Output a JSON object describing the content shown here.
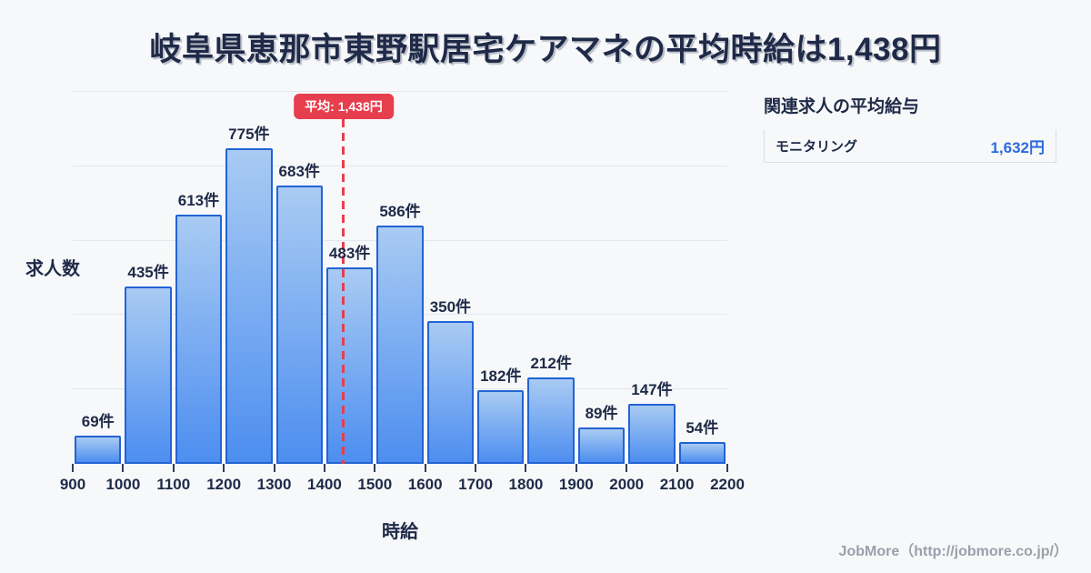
{
  "title": "岐阜県恵那市東野駅居宅ケアマネの平均時給は1,438円",
  "chart_data": {
    "type": "bar",
    "subtype": "histogram",
    "xlabel": "時給",
    "ylabel": "求人数",
    "categories": [
      "900-1000",
      "1000-1100",
      "1100-1200",
      "1200-1300",
      "1300-1400",
      "1400-1500",
      "1500-1600",
      "1600-1700",
      "1700-1800",
      "1800-1900",
      "1900-2000",
      "2000-2100",
      "2100-2200"
    ],
    "values": [
      69,
      435,
      613,
      775,
      683,
      483,
      586,
      350,
      182,
      212,
      89,
      147,
      54
    ],
    "bar_label_unit": "件",
    "x_tick_labels": [
      "900",
      "1000",
      "1100",
      "1200",
      "1300",
      "1400",
      "1500",
      "1600",
      "1700",
      "1800",
      "1900",
      "2000",
      "2100",
      "2200"
    ],
    "x_range": [
      900,
      2200
    ],
    "average_value": 1438,
    "average_badge_label": "平均: 1,438円",
    "grid": true,
    "gridline_count": 5,
    "legend_position": "none"
  },
  "side_panel": {
    "heading": "関連求人の平均給与",
    "rows": [
      {
        "label": "モニタリング",
        "value": "1,632円"
      }
    ]
  },
  "footer": {
    "credit": "JobMore（http://jobmore.co.jp/）"
  },
  "colors": {
    "bg": "#f7f8fa",
    "navy": "#1e2a47",
    "grid": "#e4e7ef",
    "bar-top": "#a9cbf3",
    "bar-bottom": "#4d8ef0",
    "bar-border": "#2363d4",
    "red": "#e73e4e",
    "blue": "#2c6ae0",
    "panel-border": "#d9dee8",
    "footer-gray": "#9aa0aa"
  }
}
